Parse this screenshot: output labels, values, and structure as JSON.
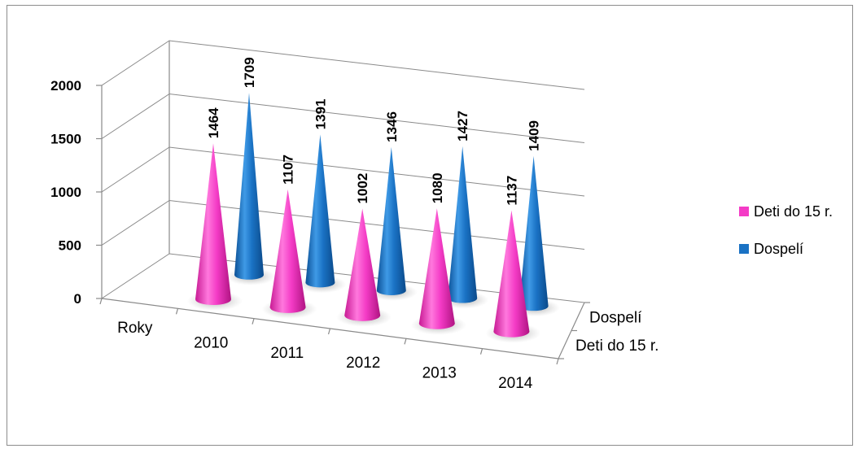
{
  "chart_data": {
    "type": "bar",
    "subtype": "3d-cone",
    "categories": [
      "Roky",
      "2010",
      "2011",
      "2012",
      "2013",
      "2014"
    ],
    "series": [
      {
        "name": "Deti do 15 r.",
        "values": [
          null,
          1464,
          1107,
          1002,
          1080,
          1137
        ],
        "color": "#f43bc6"
      },
      {
        "name": "Dospelí",
        "values": [
          null,
          1709,
          1391,
          1346,
          1427,
          1409
        ],
        "color": "#1a72c4"
      }
    ],
    "depth_labels": [
      "Dospelí",
      "Deti do 15 r."
    ],
    "y_ticks": [
      "0",
      "500",
      "1000",
      "1500",
      "2000"
    ],
    "ylim": [
      0,
      2000
    ],
    "grid": true,
    "legend": "right",
    "data_labels": true
  }
}
